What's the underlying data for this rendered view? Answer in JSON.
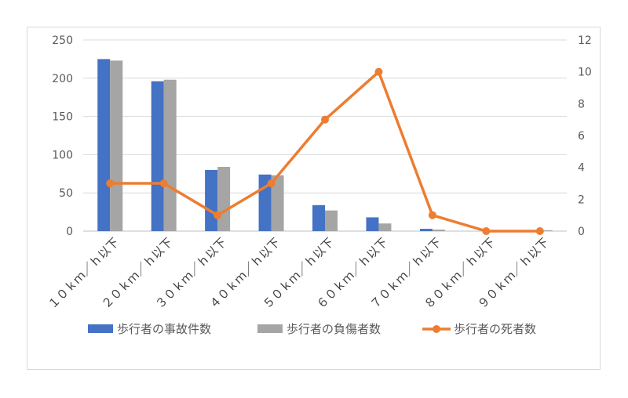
{
  "chart_data": {
    "type": "bar",
    "categories": [
      "１０ｋｍ／ｈ以下",
      "２０ｋｍ／ｈ以下",
      "３０ｋｍ／ｈ以下",
      "４０ｋｍ／ｈ以下",
      "５０ｋｍ／ｈ以下",
      "６０ｋｍ／ｈ以下",
      "７０ｋｍ／ｈ以下",
      "８０ｋｍ／ｈ以下",
      "９０ｋｍ／ｈ以下"
    ],
    "series": [
      {
        "name": "歩行者の事故件数",
        "type": "bar",
        "axis": "left",
        "color": "#4472C4",
        "values": [
          225,
          196,
          80,
          74,
          34,
          18,
          3,
          0,
          0
        ]
      },
      {
        "name": "歩行者の負傷者数",
        "type": "bar",
        "axis": "left",
        "color": "#A5A5A5",
        "values": [
          223,
          198,
          84,
          73,
          27,
          10,
          2,
          0,
          1
        ]
      },
      {
        "name": "歩行者の死者数",
        "type": "line",
        "axis": "right",
        "color": "#ED7D31",
        "values": [
          3,
          3,
          1,
          3,
          7,
          10,
          1,
          0,
          0
        ]
      }
    ],
    "y_left": {
      "range": [
        0,
        250
      ],
      "ticks": [
        0,
        50,
        100,
        150,
        200,
        250
      ]
    },
    "y_right": {
      "range": [
        0,
        12
      ],
      "ticks": [
        0,
        2,
        4,
        6,
        8,
        10,
        12
      ]
    },
    "grid": true,
    "legend_position": "bottom"
  }
}
